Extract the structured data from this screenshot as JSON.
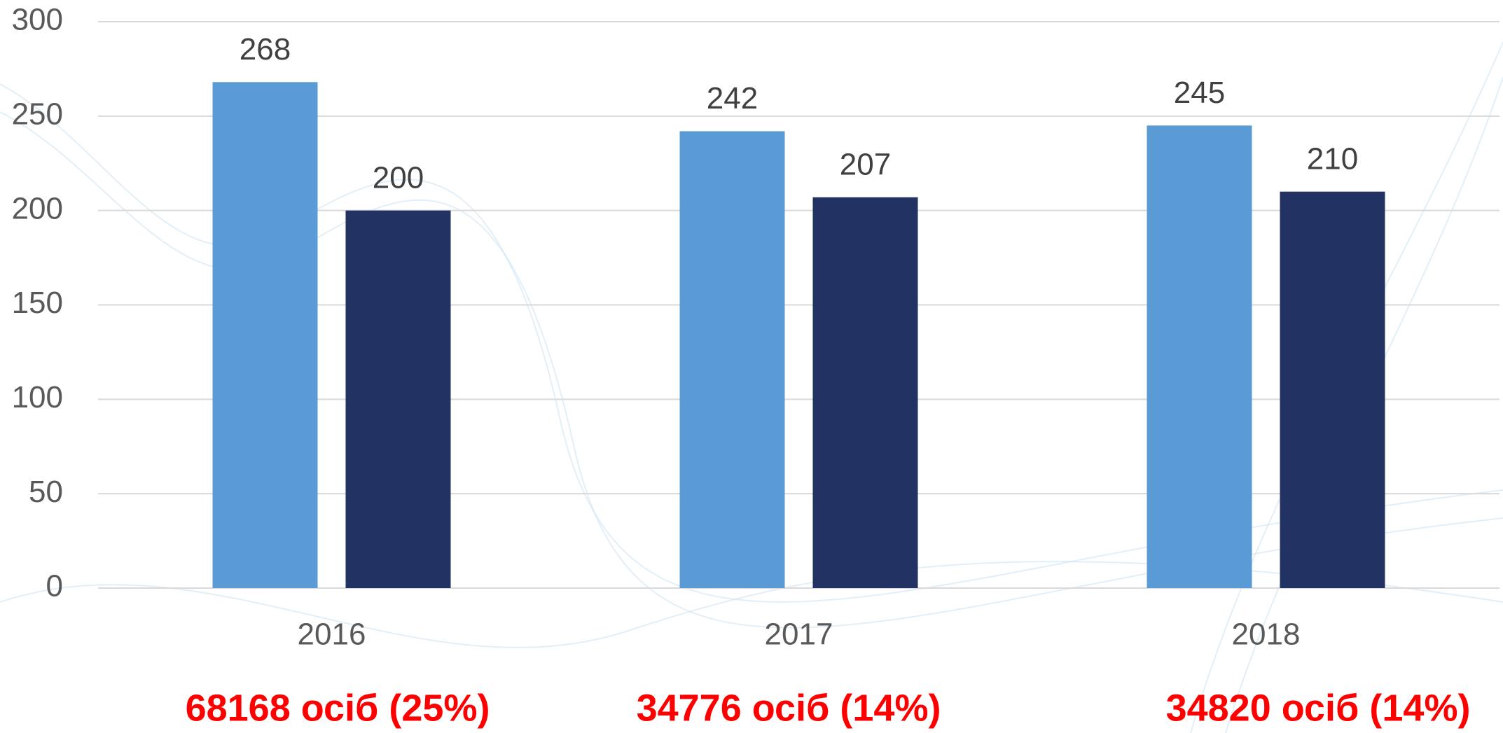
{
  "chart_data": {
    "type": "bar",
    "categories": [
      "2016",
      "2017",
      "2018"
    ],
    "series": [
      {
        "color": "#5b9bd5",
        "values": [
          268,
          242,
          245
        ]
      },
      {
        "color": "#223263",
        "values": [
          200,
          207,
          210
        ]
      }
    ],
    "ylim": [
      0,
      300
    ],
    "yticks": [
      0,
      50,
      100,
      150,
      200,
      250,
      300
    ],
    "grid": true,
    "annotations": [
      "68168 осіб (25%)",
      "34776 осіб (14%)",
      "34820 осіб (14%)"
    ],
    "annotation_color": "#ff0000"
  }
}
